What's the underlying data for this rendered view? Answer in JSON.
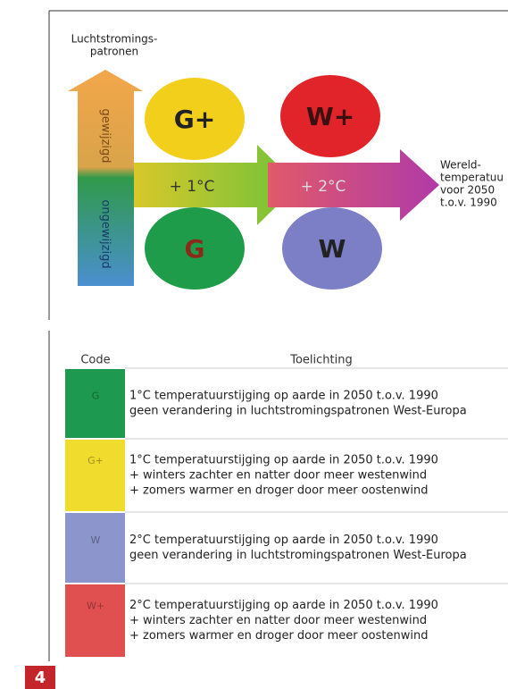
{
  "diagram": {
    "y_axis_label": [
      "Luchtstromings-",
      "patronen"
    ],
    "up_label": "gewijzigd",
    "down_label": "ongewijzigd",
    "arrow_labels": [
      "+ 1°C",
      "+ 2°C"
    ],
    "x_axis_label": [
      "Wereld-",
      "temperatuu",
      "voor 2050",
      "t.o.v. 1990"
    ],
    "circles": [
      "G+",
      "W+",
      "G",
      "W"
    ]
  },
  "table": {
    "header": [
      "Code",
      "Toelichting"
    ],
    "rows": [
      {
        "code": "G",
        "lines": [
          "1°C temperatuurstijging op aarde in 2050 t.o.v. 1990",
          "geen verandering in luchtstromingspatronen West-Europa"
        ]
      },
      {
        "code": "G+",
        "lines": [
          "1°C temperatuurstijging op aarde in 2050 t.o.v. 1990",
          "+ winters zachter en natter door meer westenwind",
          "+ zomers warmer en droger door meer oostenwind"
        ]
      },
      {
        "code": "W",
        "lines": [
          "2°C temperatuurstijging op aarde in 2050 t.o.v. 1990",
          "geen verandering in luchtstromingspatronen West-Europa"
        ]
      },
      {
        "code": "W+",
        "lines": [
          "2°C temperatuurstijging op aarde in 2050 t.o.v. 1990",
          "+ winters zachter en natter door meer westenwind",
          "+ zomers warmer en droger door meer oostenwind"
        ]
      }
    ]
  },
  "page_number": "4"
}
